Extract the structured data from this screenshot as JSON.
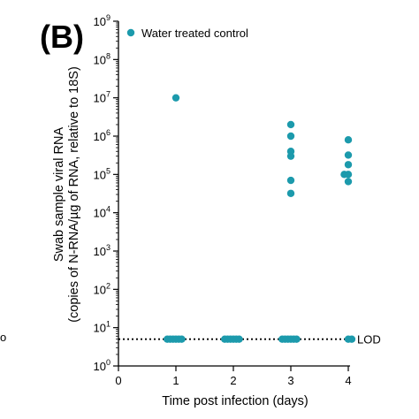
{
  "panel_label": "(B)",
  "stray_mark": "o",
  "chart_data": {
    "type": "scatter",
    "ylabel_line1": "Swab sample viral RNA",
    "ylabel_line2": "(copies of N-RNA/µg of RNA, relative to 18S)",
    "xlabel": "Time post infection (days)",
    "xlim": [
      0,
      4
    ],
    "ylim": [
      1,
      1000000000
    ],
    "yscale": "log",
    "x_ticks": [
      0,
      1,
      2,
      3,
      4
    ],
    "x_tick_labels": [
      "0",
      "1",
      "2",
      "3",
      "4"
    ],
    "y_tick_exponents": [
      0,
      1,
      2,
      3,
      4,
      5,
      6,
      7,
      8,
      9
    ],
    "y_tick_base": "10",
    "legend": {
      "entry": "Water treated control",
      "position": "top-left"
    },
    "lod": {
      "value": 5,
      "label": "LOD"
    },
    "series": [
      {
        "name": "Water treated control",
        "color": "#1c9aac",
        "points": [
          {
            "x": 1,
            "y": 10000000
          },
          {
            "x": 3,
            "y": 2000000
          },
          {
            "x": 3,
            "y": 1000000
          },
          {
            "x": 3,
            "y": 400000
          },
          {
            "x": 3,
            "y": 300000
          },
          {
            "x": 3,
            "y": 70000
          },
          {
            "x": 3,
            "y": 32000
          },
          {
            "x": 4,
            "y": 800000
          },
          {
            "x": 4,
            "y": 320000
          },
          {
            "x": 4,
            "y": 180000
          },
          {
            "x": 3.93,
            "y": 100000
          },
          {
            "x": 4,
            "y": 100000
          },
          {
            "x": 4,
            "y": 65000
          },
          {
            "x": 0.85,
            "y": 5
          },
          {
            "x": 0.9,
            "y": 5
          },
          {
            "x": 0.95,
            "y": 5
          },
          {
            "x": 1.0,
            "y": 5
          },
          {
            "x": 1.05,
            "y": 5
          },
          {
            "x": 1.1,
            "y": 5
          },
          {
            "x": 1.85,
            "y": 5
          },
          {
            "x": 1.9,
            "y": 5
          },
          {
            "x": 1.95,
            "y": 5
          },
          {
            "x": 2.0,
            "y": 5
          },
          {
            "x": 2.05,
            "y": 5
          },
          {
            "x": 2.1,
            "y": 5
          },
          {
            "x": 2.85,
            "y": 5
          },
          {
            "x": 2.9,
            "y": 5
          },
          {
            "x": 2.95,
            "y": 5
          },
          {
            "x": 3.0,
            "y": 5
          },
          {
            "x": 3.05,
            "y": 5
          },
          {
            "x": 3.1,
            "y": 5
          },
          {
            "x": 4.0,
            "y": 5
          },
          {
            "x": 4.06,
            "y": 5
          }
        ]
      }
    ]
  }
}
